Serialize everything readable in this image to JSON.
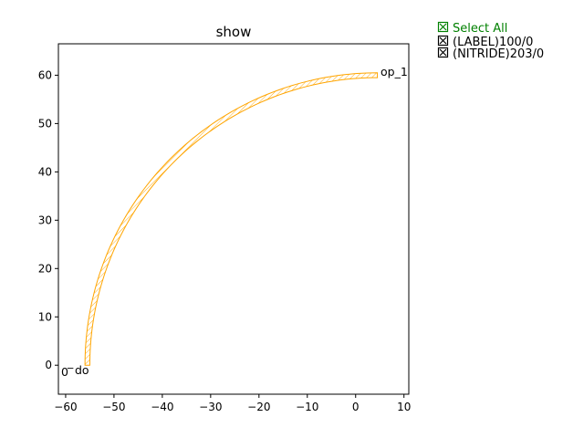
{
  "window": {
    "title": "show"
  },
  "colors": {
    "waveguide": "#ffa500",
    "select_all": "#008000",
    "text": "#000000",
    "axis": "#000000"
  },
  "legend": {
    "select_all": {
      "label": "Select All",
      "icon": "checkbox-checked-icon"
    },
    "layers": [
      {
        "label": "(LABEL)100/0",
        "icon": "checkbox-checked-icon"
      },
      {
        "label": "(NITRIDE)203/0",
        "icon": "checkbox-checked-icon"
      }
    ]
  },
  "ports": [
    {
      "name": "op_1",
      "x": 4.5,
      "y": 60.6
    },
    {
      "name": "o",
      "x": -55,
      "y": 0
    }
  ],
  "origin_labels": [
    "0",
    "_",
    "do"
  ],
  "chart_data": {
    "type": "line",
    "title": "show",
    "xlabel": "",
    "ylabel": "",
    "xlim": [
      -61.5,
      11
    ],
    "ylim": [
      -6,
      66.5
    ],
    "x_ticks": [
      -60,
      -50,
      -40,
      -30,
      -20,
      -10,
      0,
      10
    ],
    "y_ticks": [
      0,
      10,
      20,
      30,
      40,
      50,
      60
    ],
    "x_tick_labels": [
      "−60",
      "−50",
      "−40",
      "−30",
      "−20",
      "−10",
      "0",
      "10"
    ],
    "y_tick_labels": [
      "0",
      "10",
      "20",
      "30",
      "40",
      "50",
      "60"
    ],
    "grid": false,
    "legend_position": "outside-top-right",
    "series": [
      {
        "name": "(NITRIDE)203/0",
        "kind": "bend-polygon",
        "center": [
          4.5,
          0
        ],
        "inner_radius": 59.5,
        "outer_radius": 60.5,
        "angle_start_deg": 90,
        "angle_end_deg": 180,
        "hatched": true
      }
    ]
  }
}
